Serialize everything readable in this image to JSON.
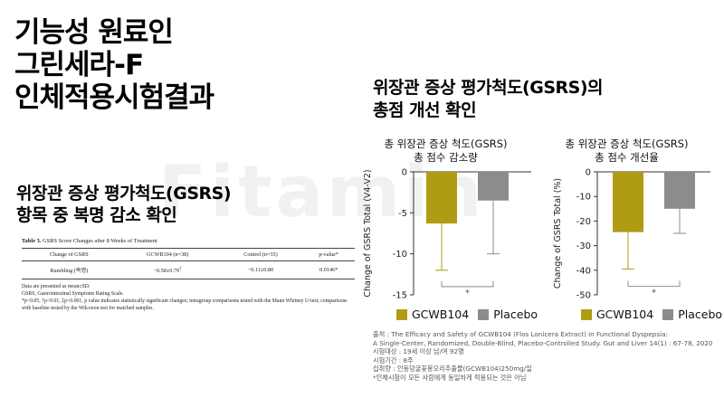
{
  "watermark": "Fitamin",
  "headline": {
    "line1": "기능성 원료인",
    "line2": "그린세라-F",
    "line3": "인체적용시험결과"
  },
  "left_subtitle": {
    "line1": "위장관 증상 평가척도(GSRS)",
    "line2": "항목 중 복명 감소 확인"
  },
  "right_subtitle": {
    "line1": "위장관 증상 평가척도(GSRS)의",
    "line2": "총점 개선 확인"
  },
  "table": {
    "title_bold": "Table 3.",
    "title_text": "GSRS Score Changes after 8 Weeks of Treatment",
    "headers": [
      "Change of GSRS",
      "GCWB104 (n=38)",
      "Control (n=35)",
      "p-value*"
    ],
    "row": {
      "label": "Rumbling (복명)",
      "gcwb": "−0.58±0.79",
      "gcwb_sup": "†",
      "control": "−0.11±0.80",
      "pvalue": "0.0146*"
    },
    "notes": [
      "Data are presented as mean±SD.",
      "GSRS, Gastrointestinal Symptoms Rating Scale.",
      "*p<0.05, †p<0.01, ‡p<0.001, p value indicates statistically significant changes; intragroup comparisons tested with the Mann Whitney U-test; comparisons with baseline tested by the Wilcoxon test for matched samples."
    ]
  },
  "colors": {
    "gcwb": "#b09c14",
    "placebo": "#8c8c8c",
    "axis": "#333333"
  },
  "chart1_title": {
    "line1": "총 위장관 증상 척도(GSRS)",
    "line2": "총 점수 감소량"
  },
  "chart2_title": {
    "line1": "총 위장관 증상 척도(GSRS)",
    "line2": "총 점수 개선율"
  },
  "legend": {
    "gcwb": "GCWB104",
    "placebo": "Placebo"
  },
  "source": {
    "line1": "출처 : The Efficacy and Safety of GCWB104 (Flos Lonicera Extract) in Functional Dyspepsia:",
    "line2": "A Single-Center, Randomized, Double-Blind, Placebo-Controlled Study. Gut and Liver 14(1) : 67-78, 2020",
    "line3": "시험대상 : 19세 이상 남/여 92명",
    "line4": "시험기간 : 8주",
    "line5": "섭취량 : 인동덩굴꽃봉오리추출물(GCWB104)250mg/일",
    "line6": "*인체시험이 모든 사람에게 동일하게 적용되는 것은 아님"
  },
  "chart_data": [
    {
      "type": "bar",
      "title": "총 위장관 증상 척도(GSRS) 총 점수 감소량",
      "ylabel": "Change of GSRS Total (V4-V2)",
      "ylim": [
        -15,
        0
      ],
      "yticks": [
        0,
        -5,
        -10,
        -15
      ],
      "categories": [
        "GCWB104",
        "Placebo"
      ],
      "values": [
        -6.3,
        -3.5
      ],
      "error_low": [
        -12.0,
        -10.0
      ],
      "significance": "*"
    },
    {
      "type": "bar",
      "title": "총 위장관 증상 척도(GSRS) 총 점수 개선율",
      "ylabel": "Change of GSRS Total (%)",
      "ylim": [
        -50,
        0
      ],
      "yticks": [
        0,
        -10,
        -20,
        -30,
        -40,
        -50
      ],
      "categories": [
        "GCWB104",
        "Placebo"
      ],
      "values": [
        -24.5,
        -15.0
      ],
      "error_low": [
        -39.5,
        -25.0
      ],
      "significance": "*"
    }
  ]
}
